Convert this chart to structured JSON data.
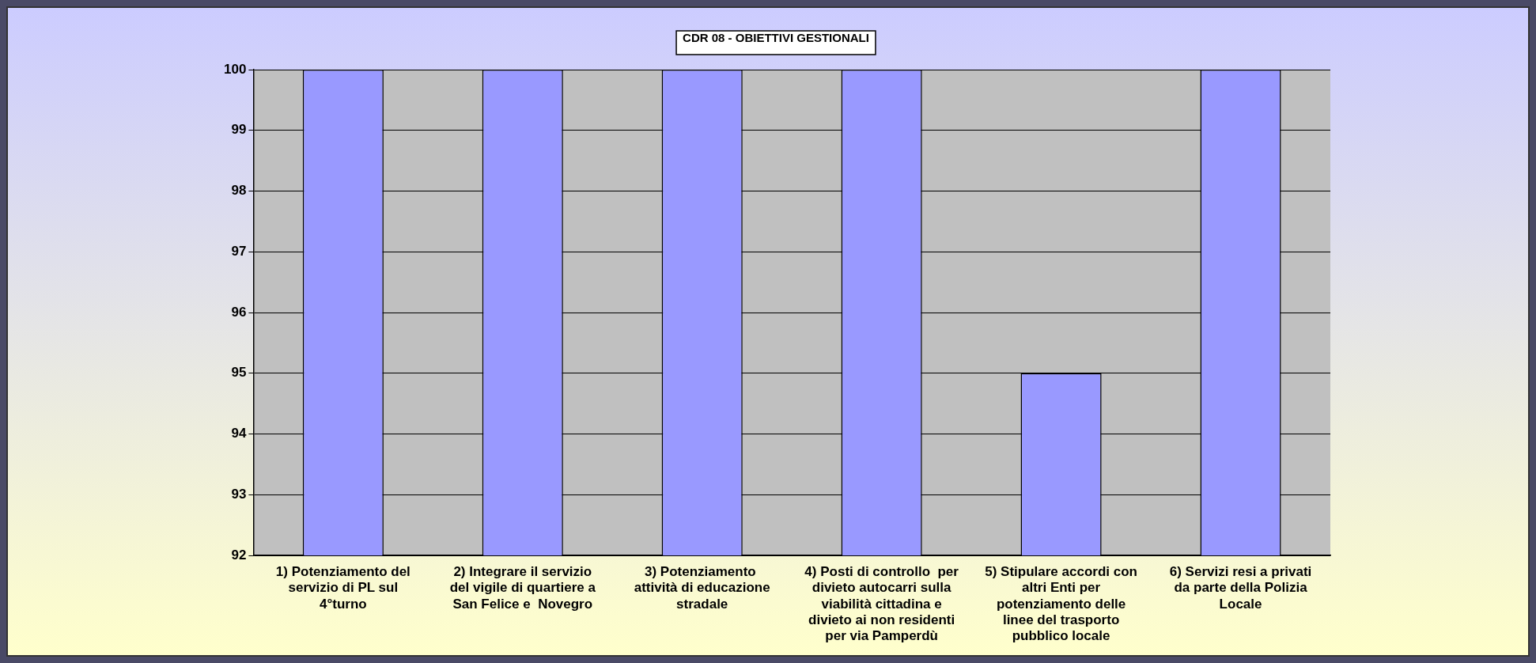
{
  "chart_data": {
    "type": "bar",
    "title": "CDR 08 - OBIETTIVI GESTIONALI",
    "categories": [
      "1) Potenziamento del servizio di PL sul 4°turno",
      "2) Integrare il servizio del vigile di quartiere a San Felice e  Novegro",
      "3) Potenziamento  attività di educazione stradale",
      "4) Posti di controllo  per divieto autocarri sulla viabilità cittadina e divieto ai non residenti per via Pamperdù",
      "5) Stipulare accordi con altri Enti per potenziamento delle linee del trasporto pubblico locale",
      "6) Servizi resi a privati da parte della Polizia Locale"
    ],
    "values": [
      100,
      100,
      100,
      100,
      95,
      100
    ],
    "color": "#9999ff",
    "ylim": [
      92,
      100
    ],
    "yticks": [
      92,
      93,
      94,
      95,
      96,
      97,
      98,
      99,
      100
    ],
    "grid": "y"
  }
}
